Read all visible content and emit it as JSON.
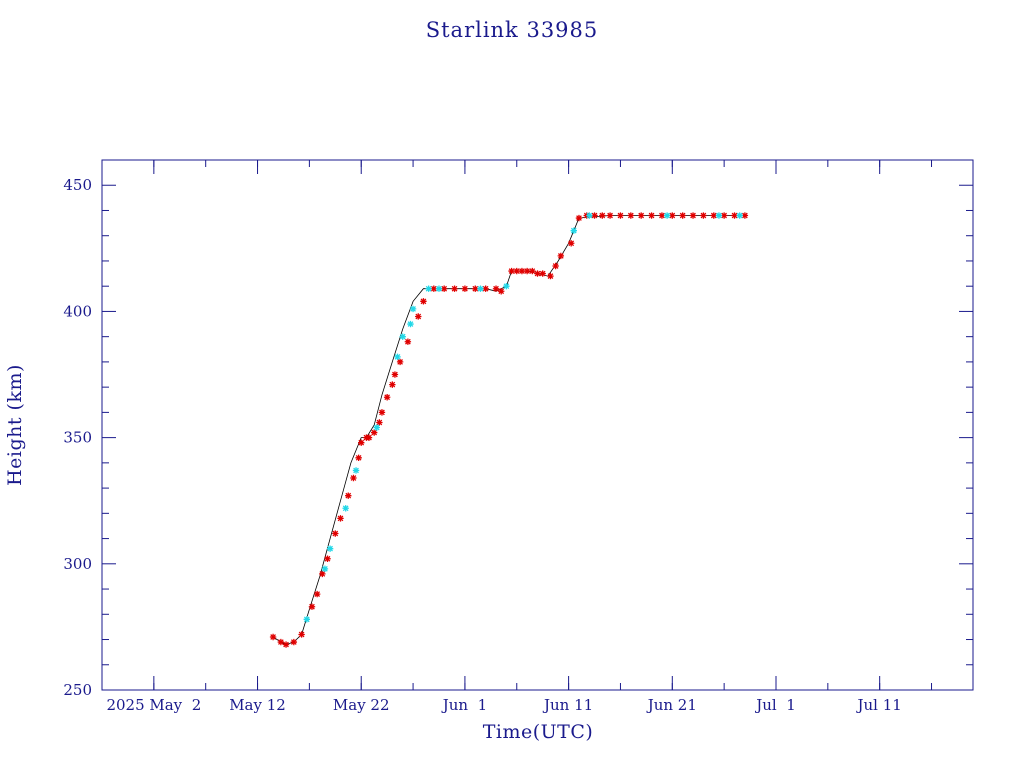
{
  "chart_data": {
    "type": "scatter",
    "title": "Starlink 33985",
    "xlabel": "Time(UTC)",
    "ylabel": "Height (km)",
    "ylim": [
      250,
      460
    ],
    "xlim": [
      "2025-04-27",
      "2025-07-20"
    ],
    "y_ticks": [
      250,
      300,
      350,
      400,
      450
    ],
    "x_ticks": [
      {
        "date": "2025-05-02",
        "label": "2025 May  2"
      },
      {
        "date": "2025-05-12",
        "label": "May 12"
      },
      {
        "date": "2025-05-22",
        "label": "May 22"
      },
      {
        "date": "2025-06-01",
        "label": "Jun  1"
      },
      {
        "date": "2025-06-11",
        "label": "Jun 11"
      },
      {
        "date": "2025-06-21",
        "label": "Jun 21"
      },
      {
        "date": "2025-07-01",
        "label": "Jul  1"
      },
      {
        "date": "2025-07-11",
        "label": "Jul 11"
      }
    ],
    "grid": false,
    "colors": {
      "frame": "#1a1a8c",
      "text": "#1a1a8c",
      "line": "#000000",
      "marker_red": "#e00000",
      "marker_cyan": "#22d8e8"
    },
    "line": {
      "x": [
        "2025-05-13T12:00",
        "2025-05-14T06:00",
        "2025-05-14T18:00",
        "2025-05-15T12:00",
        "2025-05-16T06:00",
        "2025-05-17T00:00",
        "2025-05-18T00:00",
        "2025-05-19T00:00",
        "2025-05-20T00:00",
        "2025-05-21T00:00",
        "2025-05-22T00:00",
        "2025-05-22T12:00",
        "2025-05-23T06:00",
        "2025-05-24T00:00",
        "2025-05-25T00:00",
        "2025-05-26T00:00",
        "2025-05-27T00:00",
        "2025-05-28T00:00",
        "2025-05-28T18:00",
        "2025-05-30T00:00",
        "2025-06-01T00:00",
        "2025-06-03T00:00",
        "2025-06-04T00:00",
        "2025-06-05T00:00",
        "2025-06-05T12:00",
        "2025-06-06T00:00",
        "2025-06-07T00:00",
        "2025-06-08T00:00",
        "2025-06-09T00:00",
        "2025-06-10T00:00",
        "2025-06-11T00:00",
        "2025-06-11T12:00",
        "2025-06-12T00:00",
        "2025-06-15T00:00",
        "2025-06-20T00:00",
        "2025-06-25T00:00",
        "2025-06-28T00:00"
      ],
      "y": [
        271,
        269,
        268,
        269,
        272,
        282,
        295,
        310,
        325,
        340,
        350,
        350,
        355,
        367,
        380,
        393,
        404,
        409,
        409,
        409,
        409,
        409,
        408,
        410,
        416,
        416,
        416,
        415,
        414,
        420,
        427,
        432,
        437,
        438,
        438,
        438,
        438
      ]
    },
    "series": [
      {
        "color": "red",
        "x": [
          "2025-05-13T12:00",
          "2025-05-14T06:00",
          "2025-05-14T18:00",
          "2025-05-15T12:00",
          "2025-05-16T06:00",
          "2025-05-17T06:00",
          "2025-05-17T18:00",
          "2025-05-18T06:00",
          "2025-05-18T18:00",
          "2025-05-19T12:00",
          "2025-05-20T00:00",
          "2025-05-20T18:00",
          "2025-05-21T06:00",
          "2025-05-21T18:00",
          "2025-05-22T00:00",
          "2025-05-22T12:00",
          "2025-05-22T18:00",
          "2025-05-23T06:00",
          "2025-05-23T18:00",
          "2025-05-24T00:00",
          "2025-05-24T12:00",
          "2025-05-25T00:00",
          "2025-05-25T06:00",
          "2025-05-25T18:00",
          "2025-05-26T12:00",
          "2025-05-27T12:00",
          "2025-05-28T00:00",
          "2025-05-29T00:00",
          "2025-05-30T00:00",
          "2025-05-31T00:00",
          "2025-06-01T00:00",
          "2025-06-02T00:00",
          "2025-06-03T00:00",
          "2025-06-04T00:00",
          "2025-06-04T12:00",
          "2025-06-05T12:00",
          "2025-06-06T00:00",
          "2025-06-06T12:00",
          "2025-06-07T00:00",
          "2025-06-07T12:00",
          "2025-06-08T00:00",
          "2025-06-08T12:00",
          "2025-06-09T06:00",
          "2025-06-09T18:00",
          "2025-06-10T06:00",
          "2025-06-11T06:00",
          "2025-06-12T00:00",
          "2025-06-12T18:00",
          "2025-06-13T12:00",
          "2025-06-14T06:00",
          "2025-06-15T00:00",
          "2025-06-16T00:00",
          "2025-06-17T00:00",
          "2025-06-18T00:00",
          "2025-06-19T00:00",
          "2025-06-20T00:00",
          "2025-06-21T00:00",
          "2025-06-22T00:00",
          "2025-06-23T00:00",
          "2025-06-24T00:00",
          "2025-06-25T00:00",
          "2025-06-26T00:00",
          "2025-06-27T00:00",
          "2025-06-28T00:00"
        ],
        "y": [
          271,
          269,
          268,
          269,
          272,
          283,
          288,
          296,
          302,
          312,
          318,
          327,
          334,
          342,
          348,
          350,
          350,
          352,
          356,
          360,
          366,
          371,
          375,
          380,
          388,
          398,
          404,
          409,
          409,
          409,
          409,
          409,
          409,
          409,
          408,
          416,
          416,
          416,
          416,
          416,
          415,
          415,
          414,
          418,
          422,
          427,
          437,
          438,
          438,
          438,
          438,
          438,
          438,
          438,
          438,
          438,
          438,
          438,
          438,
          438,
          438,
          438,
          438,
          438
        ]
      },
      {
        "color": "cyan",
        "x": [
          "2025-05-16T18:00",
          "2025-05-18T12:00",
          "2025-05-19T00:00",
          "2025-05-20T12:00",
          "2025-05-21T12:00",
          "2025-05-23T12:00",
          "2025-05-25T12:00",
          "2025-05-26T00:00",
          "2025-05-26T18:00",
          "2025-05-27T00:00",
          "2025-05-28T12:00",
          "2025-05-29T12:00",
          "2025-06-02T12:00",
          "2025-06-05T00:00",
          "2025-06-11T12:00",
          "2025-06-13T00:00",
          "2025-06-20T12:00",
          "2025-06-25T12:00",
          "2025-06-27T12:00"
        ],
        "y": [
          278,
          298,
          306,
          322,
          337,
          354,
          382,
          390,
          395,
          401,
          409,
          409,
          409,
          410,
          432,
          438,
          438,
          438,
          438
        ]
      }
    ]
  }
}
